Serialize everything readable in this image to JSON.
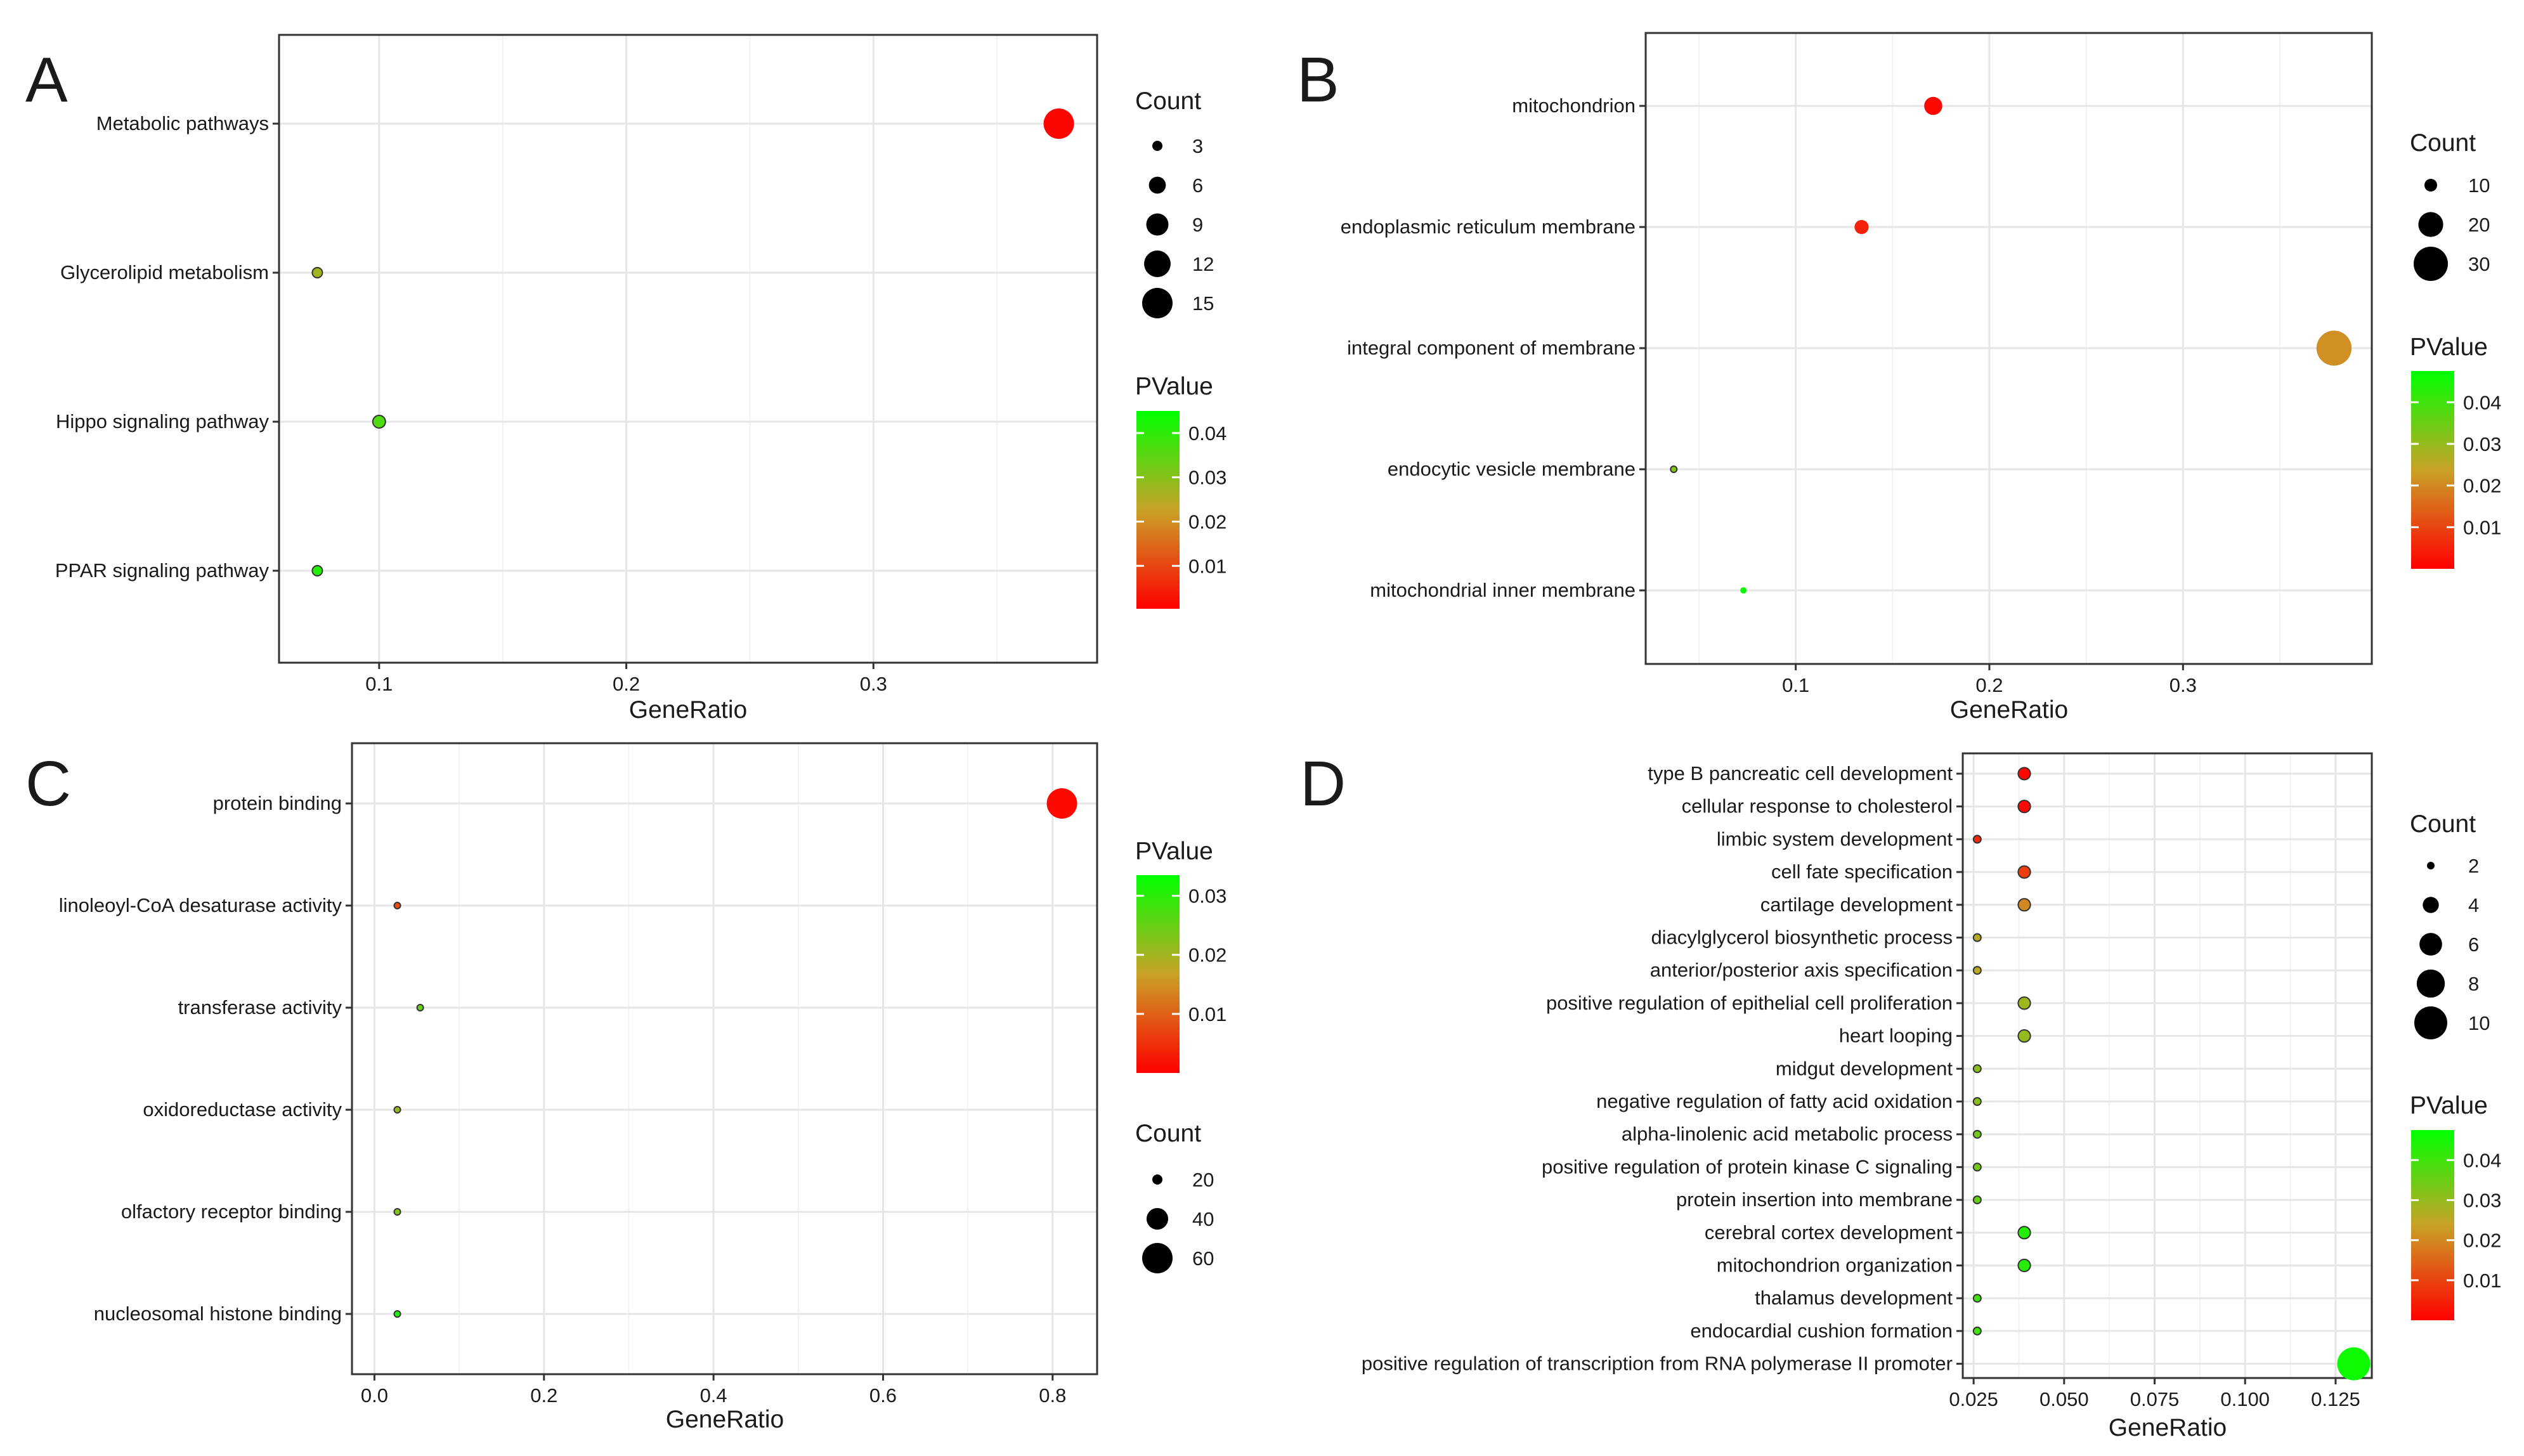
{
  "chart_data": [
    {
      "panel_label": "A",
      "type": "scatter",
      "xlabel": "GeneRatio",
      "x_ticks": [
        "0.1",
        "0.2",
        "0.3"
      ],
      "xlim": [
        0.0595,
        0.3905
      ],
      "categories": [
        "Metabolic pathways",
        "Glycerolipid metabolism",
        "Hippo signaling pathway",
        "PPAR signaling pathway"
      ],
      "points": [
        {
          "term": "Metabolic pathways",
          "gene_ratio": 0.375,
          "count": 15,
          "pvalue": 0.001
        },
        {
          "term": "Glycerolipid metabolism",
          "gene_ratio": 0.075,
          "count": 3,
          "pvalue": 0.027
        },
        {
          "term": "Hippo signaling pathway",
          "gene_ratio": 0.1,
          "count": 4,
          "pvalue": 0.036
        },
        {
          "term": "PPAR signaling pathway",
          "gene_ratio": 0.075,
          "count": 3,
          "pvalue": 0.041
        }
      ],
      "size_legend": {
        "title": "Count",
        "labels": [
          "3",
          "6",
          "9",
          "12",
          "15"
        ],
        "values": [
          3,
          6,
          9,
          12,
          15
        ]
      },
      "color_legend": {
        "title": "PValue",
        "labels": [
          "0.04",
          "0.03",
          "0.02",
          "0.01"
        ],
        "values": [
          0.04,
          0.03,
          0.02,
          0.01
        ],
        "range": [
          0.0003,
          0.045
        ],
        "low_color": "#ff0000",
        "mid_color": "#c9a227",
        "high_color": "#00ff00"
      }
    },
    {
      "panel_label": "B",
      "type": "scatter",
      "xlabel": "GeneRatio",
      "x_ticks": [
        "0.1",
        "0.2",
        "0.3"
      ],
      "xlim": [
        0.0225,
        0.3975
      ],
      "categories": [
        "mitochondrion",
        "endoplasmic reticulum membrane",
        "integral component of membrane",
        "endocytic vesicle membrane",
        "mitochondrial inner membrane"
      ],
      "points": [
        {
          "term": "mitochondrion",
          "gene_ratio": 0.171,
          "count": 14,
          "pvalue": 0.001
        },
        {
          "term": "endoplasmic reticulum membrane",
          "gene_ratio": 0.134,
          "count": 11,
          "pvalue": 0.005
        },
        {
          "term": "integral component of membrane",
          "gene_ratio": 0.378,
          "count": 31,
          "pvalue": 0.021
        },
        {
          "term": "endocytic vesicle membrane",
          "gene_ratio": 0.037,
          "count": 3,
          "pvalue": 0.032
        },
        {
          "term": "mitochondrial inner membrane",
          "gene_ratio": 0.073,
          "count": 6,
          "pvalue": 0.046
        }
      ],
      "size_legend": {
        "title": "Count",
        "labels": [
          "10",
          "20",
          "30"
        ],
        "values": [
          10,
          20,
          30
        ]
      },
      "color_legend": {
        "title": "PValue",
        "labels": [
          "0.04",
          "0.03",
          "0.02",
          "0.01"
        ],
        "values": [
          0.04,
          0.03,
          0.02,
          0.01
        ],
        "range": [
          0.0,
          0.0475
        ],
        "low_color": "#ff0000",
        "mid_color": "#c9a227",
        "high_color": "#00ff00"
      }
    },
    {
      "panel_label": "C",
      "type": "scatter",
      "xlabel": "GeneRatio",
      "x_ticks": [
        "0.0",
        "0.2",
        "0.4",
        "0.6",
        "0.8"
      ],
      "xlim": [
        -0.0265,
        0.8525
      ],
      "categories": [
        "protein binding",
        "linoleoyl-CoA desaturase activity",
        "transferase activity",
        "oxidoreductase activity",
        "olfactory receptor binding",
        "nucleosomal histone binding"
      ],
      "points": [
        {
          "term": "protein binding",
          "gene_ratio": 0.811,
          "count": 60,
          "pvalue": 0.001
        },
        {
          "term": "linoleoyl-CoA desaturase activity",
          "gene_ratio": 0.027,
          "count": 2,
          "pvalue": 0.008
        },
        {
          "term": "transferase activity",
          "gene_ratio": 0.054,
          "count": 4,
          "pvalue": 0.025
        },
        {
          "term": "oxidoreductase activity",
          "gene_ratio": 0.027,
          "count": 2,
          "pvalue": 0.021
        },
        {
          "term": "olfactory receptor binding",
          "gene_ratio": 0.027,
          "count": 2,
          "pvalue": 0.023
        },
        {
          "term": "nucleosomal histone binding",
          "gene_ratio": 0.027,
          "count": 2,
          "pvalue": 0.031
        }
      ],
      "size_legend": {
        "title": "Count",
        "labels": [
          "20",
          "40",
          "60"
        ],
        "values": [
          20,
          40,
          60
        ]
      },
      "color_legend": {
        "title": "PValue",
        "labels": [
          "0.03",
          "0.02",
          "0.01"
        ],
        "values": [
          0.03,
          0.02,
          0.01
        ],
        "range": [
          0.0,
          0.0335
        ],
        "low_color": "#ff0000",
        "mid_color": "#c9a227",
        "high_color": "#00ff00"
      }
    },
    {
      "panel_label": "D",
      "type": "scatter",
      "xlabel": "GeneRatio",
      "x_ticks": [
        "0.025",
        "0.050",
        "0.075",
        "0.100",
        "0.125"
      ],
      "xlim": [
        0.022,
        0.135
      ],
      "categories": [
        "type B pancreatic cell development",
        "cellular response to cholesterol",
        "limbic system development",
        "cell fate specification",
        "cartilage development",
        "diacylglycerol biosynthetic process",
        "anterior/posterior axis specification",
        "positive regulation of epithelial cell proliferation",
        "heart looping",
        "midgut development",
        "negative regulation of fatty acid oxidation",
        "alpha-linolenic acid metabolic process",
        "positive regulation of protein kinase C signaling",
        "protein insertion into membrane",
        "cerebral cortex development",
        "mitochondrion organization",
        "thalamus development",
        "endocardial cushion formation",
        "positive regulation of transcription from RNA polymerase II promoter"
      ],
      "points": [
        {
          "term": "type B pancreatic cell development",
          "gene_ratio": 0.039,
          "count": 3,
          "pvalue": 0.001
        },
        {
          "term": "cellular response to cholesterol",
          "gene_ratio": 0.039,
          "count": 3,
          "pvalue": 0.001
        },
        {
          "term": "limbic system development",
          "gene_ratio": 0.026,
          "count": 2,
          "pvalue": 0.006
        },
        {
          "term": "cell fate specification",
          "gene_ratio": 0.039,
          "count": 3,
          "pvalue": 0.009
        },
        {
          "term": "cartilage development",
          "gene_ratio": 0.039,
          "count": 3,
          "pvalue": 0.02
        },
        {
          "term": "diacylglycerol biosynthetic process",
          "gene_ratio": 0.026,
          "count": 2,
          "pvalue": 0.026
        },
        {
          "term": "anterior/posterior axis specification",
          "gene_ratio": 0.026,
          "count": 2,
          "pvalue": 0.026
        },
        {
          "term": "positive regulation of epithelial cell proliferation",
          "gene_ratio": 0.039,
          "count": 3,
          "pvalue": 0.029
        },
        {
          "term": "heart looping",
          "gene_ratio": 0.039,
          "count": 3,
          "pvalue": 0.03
        },
        {
          "term": "midgut development",
          "gene_ratio": 0.026,
          "count": 2,
          "pvalue": 0.031
        },
        {
          "term": "negative regulation of fatty acid oxidation",
          "gene_ratio": 0.026,
          "count": 2,
          "pvalue": 0.031
        },
        {
          "term": "alpha-linolenic acid metabolic process",
          "gene_ratio": 0.026,
          "count": 2,
          "pvalue": 0.034
        },
        {
          "term": "positive regulation of protein kinase C signaling",
          "gene_ratio": 0.026,
          "count": 2,
          "pvalue": 0.034
        },
        {
          "term": "protein insertion into membrane",
          "gene_ratio": 0.026,
          "count": 2,
          "pvalue": 0.036
        },
        {
          "term": "cerebral cortex development",
          "gene_ratio": 0.039,
          "count": 3,
          "pvalue": 0.043
        },
        {
          "term": "mitochondrion organization",
          "gene_ratio": 0.039,
          "count": 3,
          "pvalue": 0.043
        },
        {
          "term": "thalamus development",
          "gene_ratio": 0.026,
          "count": 2,
          "pvalue": 0.04
        },
        {
          "term": "endocardial cushion formation",
          "gene_ratio": 0.026,
          "count": 2,
          "pvalue": 0.04
        },
        {
          "term": "positive regulation of transcription from RNA polymerase II promoter",
          "gene_ratio": 0.13,
          "count": 10,
          "pvalue": 0.046
        }
      ],
      "size_legend": {
        "title": "Count",
        "labels": [
          "2",
          "4",
          "6",
          "8",
          "10"
        ],
        "values": [
          2,
          4,
          6,
          8,
          10
        ]
      },
      "color_legend": {
        "title": "PValue",
        "labels": [
          "0.04",
          "0.03",
          "0.02",
          "0.01"
        ],
        "values": [
          0.04,
          0.03,
          0.02,
          0.01
        ],
        "range": [
          0.0,
          0.0475
        ],
        "low_color": "#ff0000",
        "mid_color": "#c9a227",
        "high_color": "#00ff00"
      }
    }
  ]
}
